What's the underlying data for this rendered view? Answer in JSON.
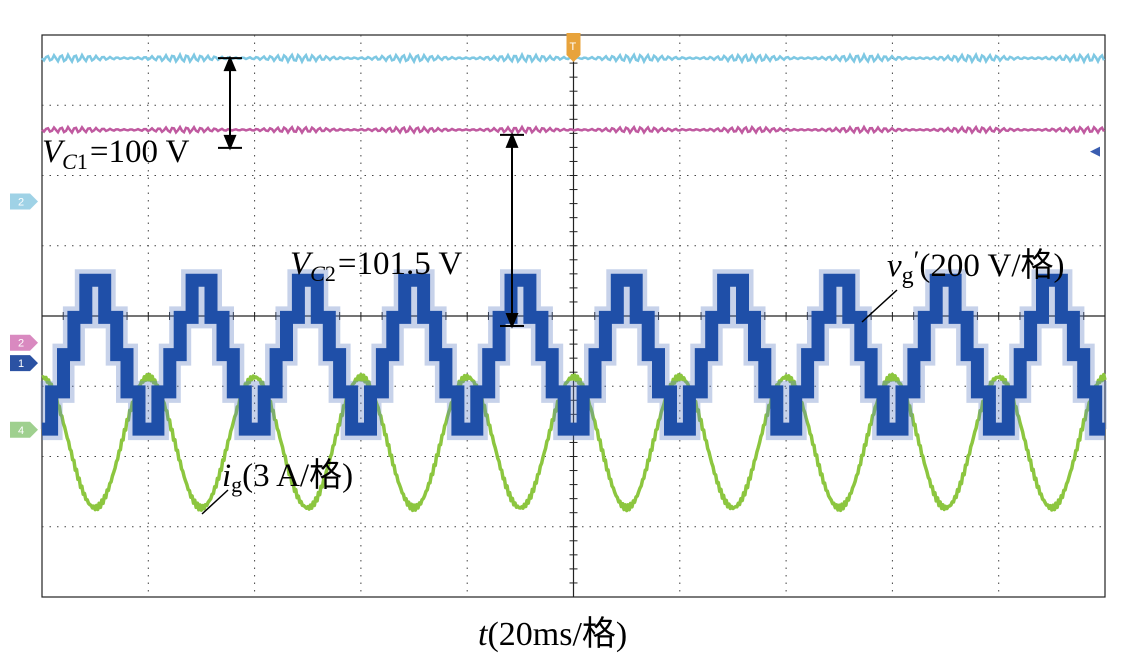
{
  "chart_data": {
    "type": "line",
    "grid": true,
    "divisions": {
      "x": 10,
      "y": 8
    },
    "x_scale": {
      "per_div": 20,
      "unit": "ms",
      "range": [
        0,
        200
      ]
    },
    "trigger_marker": {
      "label": "T",
      "color": "#e8a33b"
    },
    "channel_markers": [
      {
        "id": "2",
        "color": "#9fd2e6"
      },
      {
        "id": "2",
        "color": "#d989c0"
      },
      {
        "id": "1",
        "color": "#2b52a3"
      },
      {
        "id": "4",
        "color": "#9fd08f"
      }
    ],
    "series": [
      {
        "name": "VC1",
        "kind": "dc",
        "color": "#7ec8e3",
        "level_div": 3.67,
        "ripple_div": 0.05
      },
      {
        "name": "VC2",
        "kind": "dc",
        "color": "#c05aa0",
        "level_div": 2.65,
        "ripple_div": 0.04
      },
      {
        "name": "vg'",
        "kind": "staircase",
        "color": "#1f4fa8",
        "center_div": -0.55,
        "step_div": 0.53,
        "frequency_hz": 50,
        "per_div": 200,
        "unit": "V"
      },
      {
        "name": "ig",
        "kind": "sine",
        "color": "#8cc63f",
        "center_div": -1.8,
        "amplitude_div": 0.93,
        "frequency_hz": 50,
        "per_div": 3,
        "unit": "A"
      }
    ],
    "annotations": {
      "vc1": {
        "var": "V",
        "sub": "C",
        "num": "1",
        "value": "=100 V"
      },
      "vc2": {
        "var": "V",
        "sub": "C",
        "num": "2",
        "value": "=101.5 V"
      },
      "vg": {
        "var": "v",
        "sub": "g",
        "prime": "′",
        "scale": "(200 V/格)"
      },
      "ig": {
        "var": "i",
        "sub": "g",
        "scale": "(3 A/格)"
      }
    },
    "xlabel": {
      "var": "t",
      "rest": "(20ms/格)"
    }
  }
}
